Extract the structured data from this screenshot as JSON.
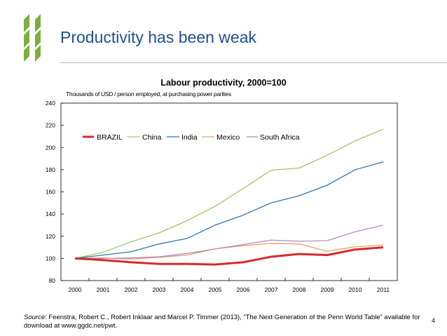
{
  "slide": {
    "title": "Productivity has been weak",
    "page_number": "4"
  },
  "source": {
    "label": "Source",
    "text": ": Feenstra, Robert C., Robert Inklaar and Marcel P. Timmer (2013), “The Next Generation of the Penn World Table” available for download at www.ggdc.net/pwt."
  },
  "colors": {
    "title_blue": "#1f4f91",
    "logo_green": "#7fae3c",
    "brazil": "#d9292b",
    "china": "#9cc965",
    "india": "#2e75b6",
    "mexico": "#e6a063",
    "south_africa": "#b48ad0"
  },
  "chart_data": {
    "type": "line",
    "title": "Labour productivity, 2000=100",
    "subtitle": "Thousands of USD / person employed, at purchasing power parities",
    "xlabel": "",
    "ylabel": "",
    "categories": [
      "2000",
      "2001",
      "2002",
      "2003",
      "2004",
      "2005",
      "2006",
      "2007",
      "2008",
      "2009",
      "2010",
      "2011"
    ],
    "ylim": [
      80,
      240
    ],
    "yticks": [
      80,
      100,
      120,
      140,
      160,
      180,
      200,
      220,
      240
    ],
    "grid": false,
    "legend_position": "top-inside",
    "series": [
      {
        "name": "BRAZIL",
        "color_key": "brazil",
        "emphasis": true,
        "values": [
          100,
          98.5,
          96.5,
          95,
          95,
          94.5,
          96.5,
          101.5,
          104,
          103,
          108,
          110
        ]
      },
      {
        "name": "China",
        "color_key": "china",
        "values": [
          100,
          105.5,
          115,
          123,
          134,
          147,
          163,
          179.5,
          181.5,
          193,
          206,
          216.5
        ]
      },
      {
        "name": "India",
        "color_key": "india",
        "values": [
          100,
          103,
          106,
          113,
          118,
          130,
          139,
          150,
          156.5,
          166,
          180,
          187
        ]
      },
      {
        "name": "Mexico",
        "color_key": "mexico",
        "values": [
          100,
          100.5,
          99.5,
          101,
          103,
          108.5,
          111.5,
          113.5,
          113,
          106.5,
          110.5,
          112
        ]
      },
      {
        "name": "South Africa",
        "color_key": "south_africa",
        "values": [
          100,
          100,
          100.5,
          101.5,
          104.5,
          108.5,
          112.5,
          116.5,
          115.5,
          116,
          124,
          130
        ]
      }
    ]
  }
}
